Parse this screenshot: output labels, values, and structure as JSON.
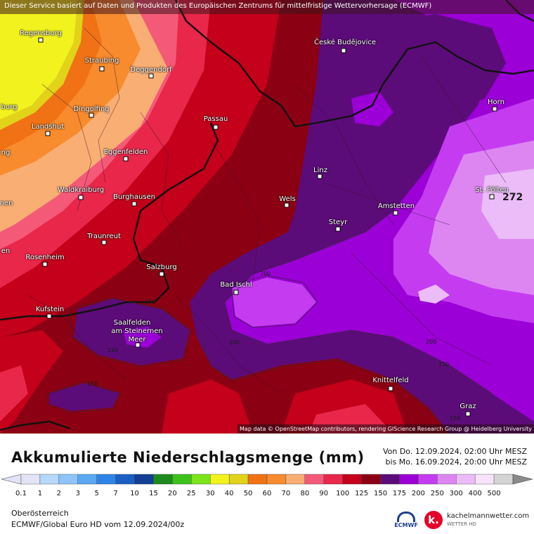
{
  "header": {
    "notice": "Dieser Service basiert auf Daten und Produkten des Europäischen Zentrums für mittelfristige Wettervorhersage (ECMWF)"
  },
  "map": {
    "attribution": "Map data © OpenStreetMap contributors, rendering GIScience Research Group @ Heidelberg University",
    "cities": [
      {
        "name": "Regensburg"
      },
      {
        "name": "Straubing"
      },
      {
        "name": "Deggendorf"
      },
      {
        "name": "Dingolfing"
      },
      {
        "name": "Landshut"
      },
      {
        "name": "Passau"
      },
      {
        "name": "Eggenfelden"
      },
      {
        "name": "Waldkraiburg"
      },
      {
        "name": "Burghausen"
      },
      {
        "name": "Traunreut"
      },
      {
        "name": "Rosenheim"
      },
      {
        "name": "Salzburg"
      },
      {
        "name": "Kufstein"
      },
      {
        "name": "Saalfelden"
      },
      {
        "name": "am Steinernen"
      },
      {
        "name": "Meer"
      },
      {
        "name": "České Budějovice"
      },
      {
        "name": "Linz"
      },
      {
        "name": "Wels"
      },
      {
        "name": "Steyr"
      },
      {
        "name": "Amstetten"
      },
      {
        "name": "Bad Ischl"
      },
      {
        "name": "Horn"
      },
      {
        "name": "St. Pölten"
      },
      {
        "name": "Knittelfeld"
      },
      {
        "name": "Graz"
      },
      {
        "name": "burg"
      },
      {
        "name": "ng"
      },
      {
        "name": "nen"
      },
      {
        "name": "en"
      }
    ],
    "isoline_labels": [
      "200",
      "150",
      "200",
      "200",
      "150",
      "150",
      "150",
      "150"
    ],
    "peak_value": "272"
  },
  "legend": {
    "title": "Akkumulierte Niederschlagsmenge (mm)",
    "period_from": "Von Do. 12.09.2024, 02:00 Uhr MESZ",
    "period_to": "bis Mo. 16.09.2024, 20:00 Uhr MESZ",
    "ticks": [
      "0.1",
      "1",
      "2",
      "3",
      "5",
      "7",
      "10",
      "15",
      "20",
      "25",
      "30",
      "40",
      "50",
      "60",
      "70",
      "80",
      "90",
      "100",
      "125",
      "150",
      "175",
      "200",
      "250",
      "300",
      "400",
      "500"
    ],
    "colors": [
      "#e3e3f7",
      "#b5d8fb",
      "#8ec4f7",
      "#5aa7f2",
      "#2d84e6",
      "#1b5fc4",
      "#123e96",
      "#1f8a1c",
      "#3cc21c",
      "#7de31b",
      "#f2f21e",
      "#e1d21a",
      "#f07215",
      "#f78b2d",
      "#f9ae73",
      "#f45a78",
      "#e8274a",
      "#c4001a",
      "#8c0013",
      "#5c0c79",
      "#9b00d6",
      "#c53cf0",
      "#dd86f2",
      "#ebbcf7",
      "#f6e3fb",
      "#d4d4d4"
    ],
    "region": "Oberösterreich",
    "model": "ECMWF/Global Euro HD vom 12.09.2024/00z",
    "logo_ecmwf": "ECMWF",
    "logo_kachel_name": "kachelmannwetter.com",
    "logo_kachel_sub": "WETTER HD",
    "logo_kachel_mark": "k."
  }
}
